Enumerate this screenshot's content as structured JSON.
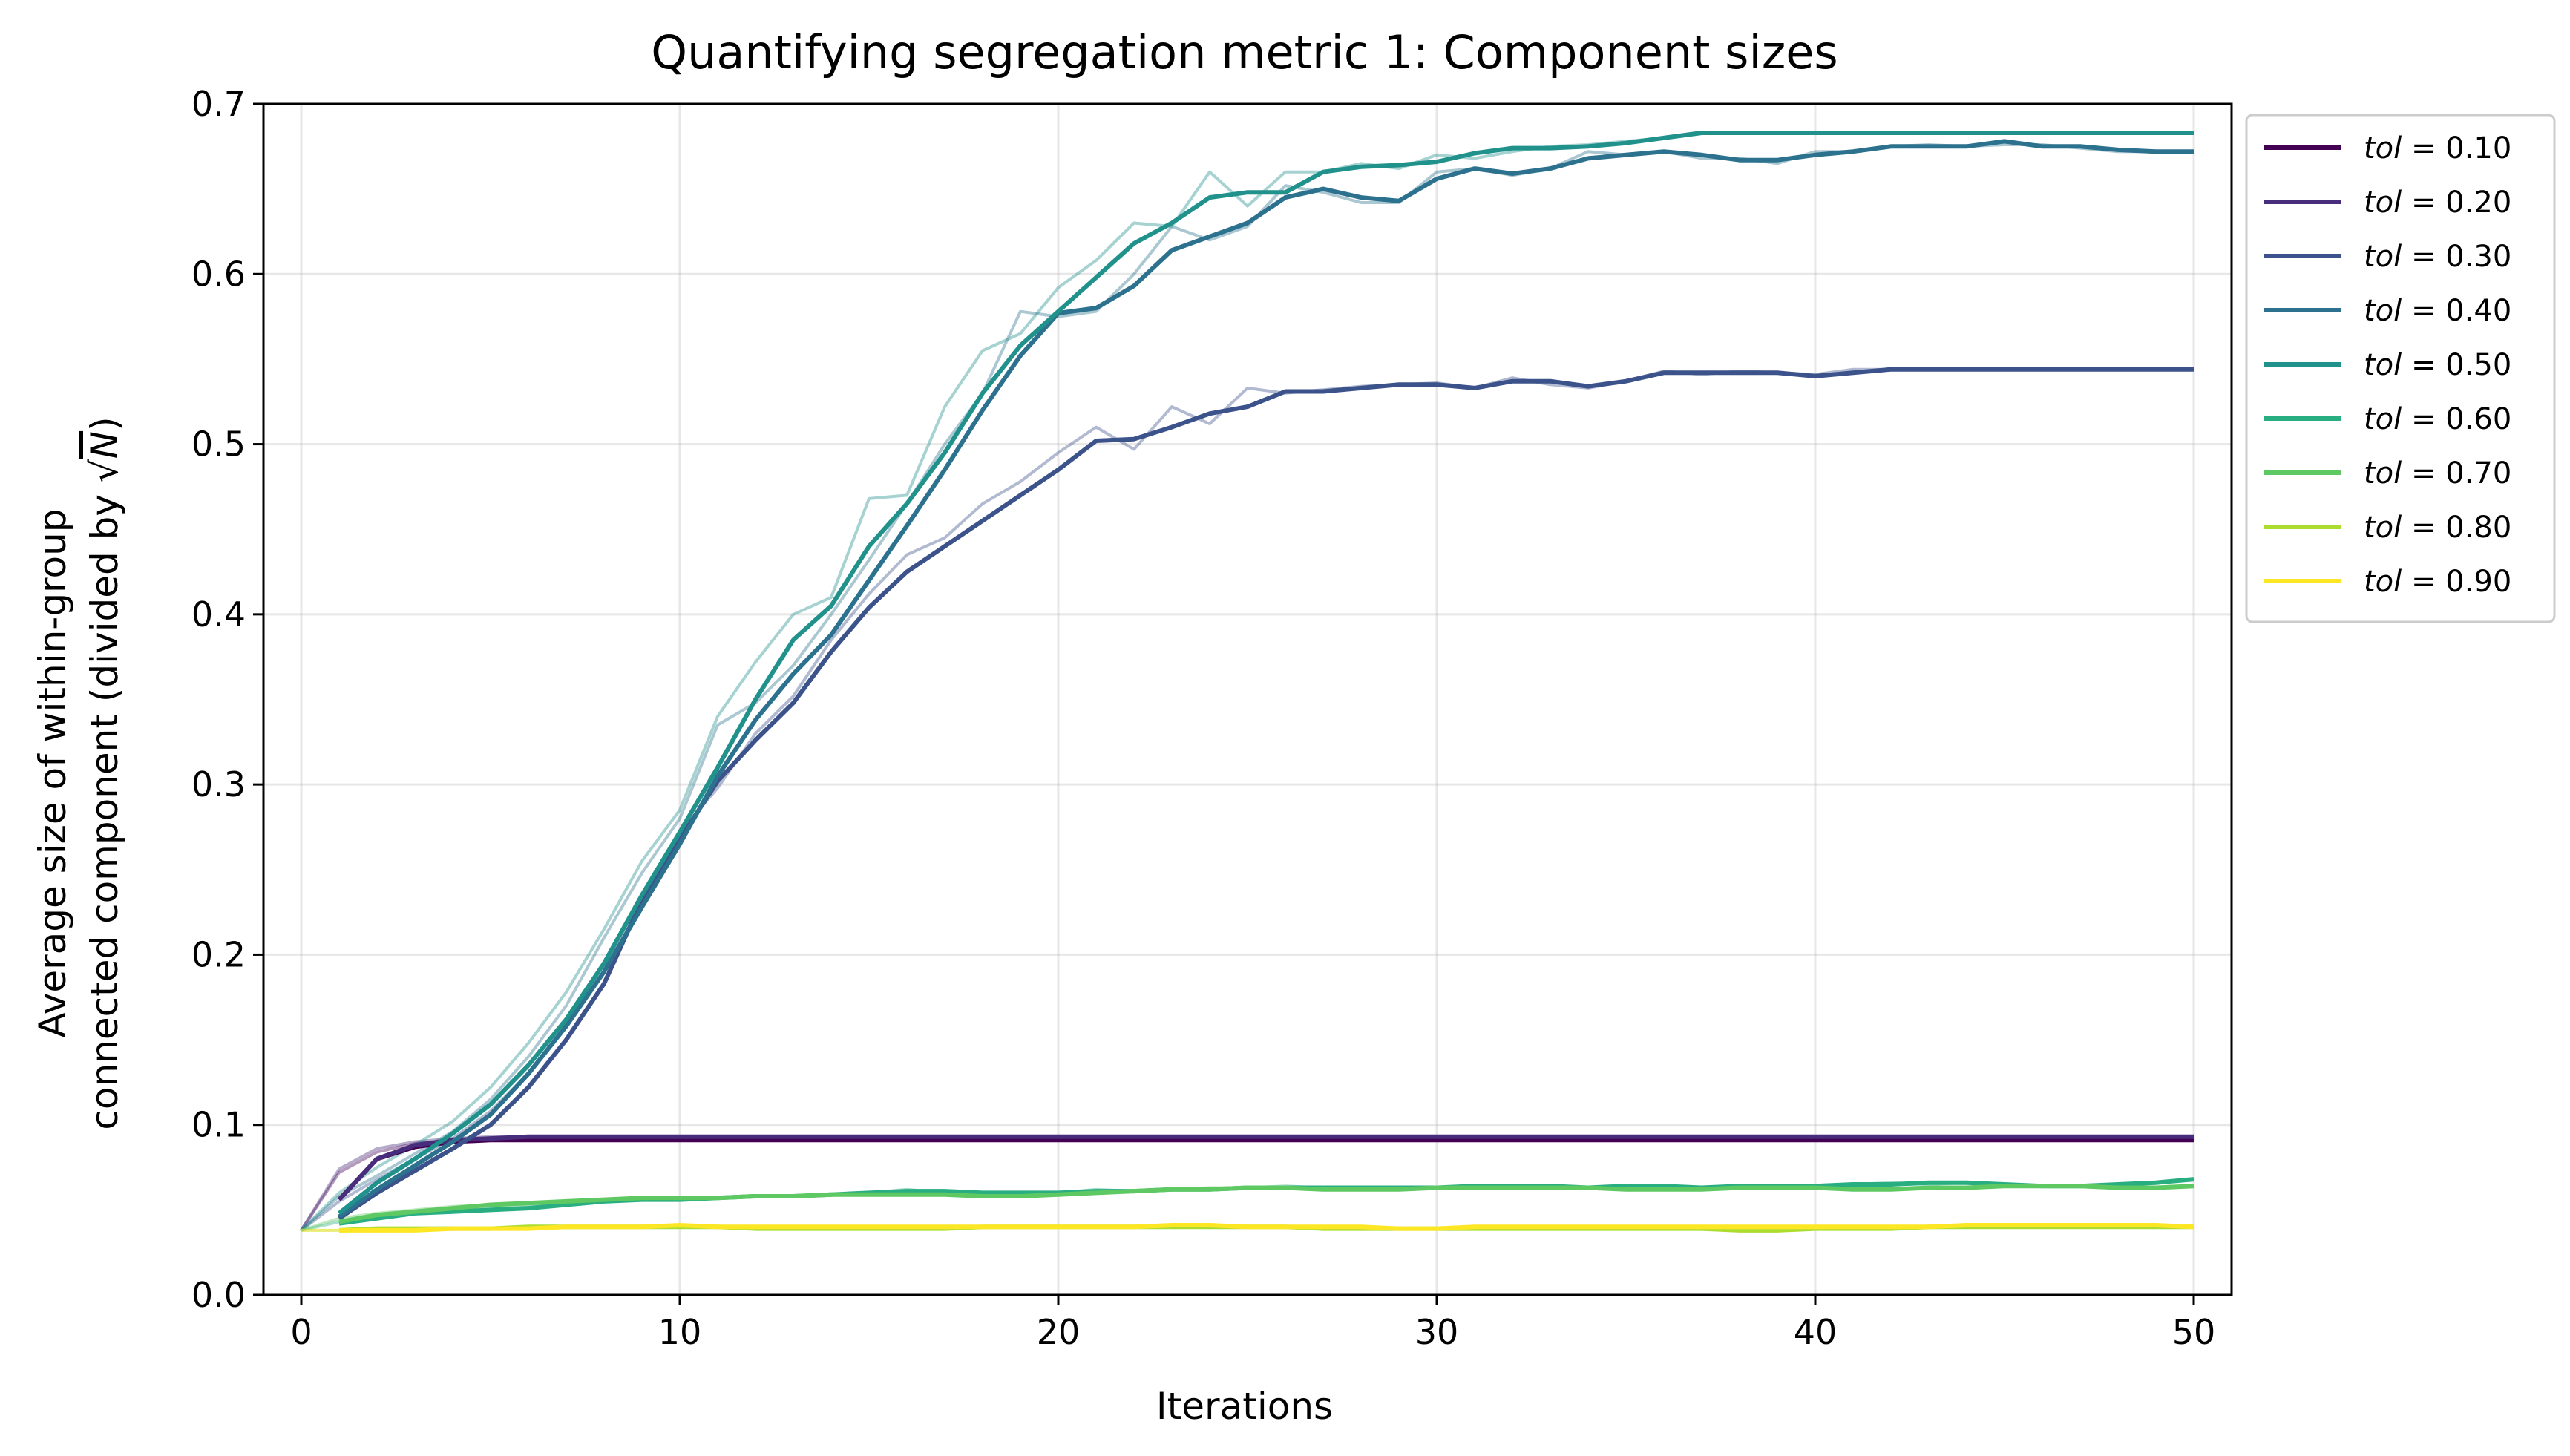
{
  "chart_data": {
    "type": "line",
    "title": "Quantifying segregation metric 1: Component sizes",
    "xlabel": "Iterations",
    "ylabel_line1": "Average size of within-group",
    "ylabel_line2_prefix": "connected component (divided by ",
    "ylabel_sqrt_symbol": "√",
    "ylabel_sqrt_var": "N",
    "ylabel_line2_suffix": ")",
    "xlim": [
      -1,
      51
    ],
    "ylim": [
      0.0,
      0.7
    ],
    "xticks": [
      0,
      10,
      20,
      30,
      40,
      50
    ],
    "xtick_labels": [
      "0",
      "10",
      "20",
      "30",
      "40",
      "50"
    ],
    "yticks": [
      0.0,
      0.1,
      0.2,
      0.3,
      0.4,
      0.5,
      0.6,
      0.7
    ],
    "ytick_labels": [
      "0.0",
      "0.1",
      "0.2",
      "0.3",
      "0.4",
      "0.5",
      "0.6",
      "0.7"
    ],
    "grid": true,
    "legend_position": "outside upper right",
    "legend_var": "tol",
    "legend_eq": " = ",
    "series": [
      {
        "name": "tol = 0.10",
        "value_label": "0.10",
        "color": "#440154",
        "raw": [
          0.038,
          0.072,
          0.084,
          0.089,
          0.091,
          0.091,
          0.091,
          0.091,
          0.091,
          0.091,
          0.091,
          0.091,
          0.091,
          0.091,
          0.091,
          0.091,
          0.091,
          0.091,
          0.091,
          0.091,
          0.091,
          0.091,
          0.091,
          0.091,
          0.091,
          0.091,
          0.091,
          0.091,
          0.091,
          0.091,
          0.091,
          0.091,
          0.091,
          0.091,
          0.091,
          0.091,
          0.091,
          0.091,
          0.091,
          0.091,
          0.091,
          0.091,
          0.091,
          0.091,
          0.091,
          0.091,
          0.091,
          0.091,
          0.091,
          0.091,
          0.091
        ],
        "smooth_start": 1,
        "smooth": [
          0.056,
          0.08,
          0.087,
          0.09,
          0.091,
          0.091,
          0.091,
          0.091,
          0.091,
          0.091,
          0.091,
          0.091,
          0.091,
          0.091,
          0.091,
          0.091,
          0.091,
          0.091,
          0.091,
          0.091,
          0.091,
          0.091,
          0.091,
          0.091,
          0.091,
          0.091,
          0.091,
          0.091,
          0.091,
          0.091,
          0.091,
          0.091,
          0.091,
          0.091,
          0.091,
          0.091,
          0.091,
          0.091,
          0.091,
          0.091,
          0.091,
          0.091,
          0.091,
          0.091,
          0.091,
          0.091,
          0.091,
          0.091,
          0.091,
          0.091
        ]
      },
      {
        "name": "tol = 0.20",
        "value_label": "0.20",
        "color": "#472d7b",
        "raw": [
          0.038,
          0.074,
          0.086,
          0.09,
          0.092,
          0.093,
          0.093,
          0.093,
          0.093,
          0.093,
          0.093,
          0.093,
          0.093,
          0.093,
          0.093,
          0.093,
          0.093,
          0.093,
          0.093,
          0.093,
          0.093,
          0.093,
          0.093,
          0.093,
          0.093,
          0.093,
          0.093,
          0.093,
          0.093,
          0.093,
          0.093,
          0.093,
          0.093,
          0.093,
          0.093,
          0.093,
          0.093,
          0.093,
          0.093,
          0.093,
          0.093,
          0.093,
          0.093,
          0.093,
          0.093,
          0.093,
          0.093,
          0.093,
          0.093,
          0.093,
          0.093
        ],
        "smooth_start": 1,
        "smooth": [
          0.056,
          0.08,
          0.088,
          0.091,
          0.092,
          0.093,
          0.093,
          0.093,
          0.093,
          0.093,
          0.093,
          0.093,
          0.093,
          0.093,
          0.093,
          0.093,
          0.093,
          0.093,
          0.093,
          0.093,
          0.093,
          0.093,
          0.093,
          0.093,
          0.093,
          0.093,
          0.093,
          0.093,
          0.093,
          0.093,
          0.093,
          0.093,
          0.093,
          0.093,
          0.093,
          0.093,
          0.093,
          0.093,
          0.093,
          0.093,
          0.093,
          0.093,
          0.093,
          0.093,
          0.093,
          0.093,
          0.093,
          0.093,
          0.093,
          0.093
        ]
      },
      {
        "name": "tol = 0.30",
        "value_label": "0.30",
        "color": "#3b528b",
        "raw": [
          0.038,
          0.055,
          0.068,
          0.08,
          0.092,
          0.108,
          0.13,
          0.158,
          0.19,
          0.232,
          0.272,
          0.298,
          0.33,
          0.352,
          0.385,
          0.412,
          0.435,
          0.445,
          0.465,
          0.478,
          0.495,
          0.51,
          0.497,
          0.522,
          0.512,
          0.533,
          0.53,
          0.532,
          0.534,
          0.535,
          0.536,
          0.533,
          0.539,
          0.535,
          0.533,
          0.537,
          0.543,
          0.541,
          0.543,
          0.542,
          0.541,
          0.544,
          0.544,
          0.544,
          0.544,
          0.544,
          0.544,
          0.544,
          0.544,
          0.544,
          0.544
        ],
        "smooth_start": 1,
        "smooth": [
          0.045,
          0.06,
          0.073,
          0.086,
          0.1,
          0.122,
          0.15,
          0.183,
          0.232,
          0.268,
          0.302,
          0.326,
          0.348,
          0.378,
          0.404,
          0.425,
          0.44,
          0.455,
          0.47,
          0.485,
          0.502,
          0.503,
          0.51,
          0.518,
          0.522,
          0.531,
          0.531,
          0.533,
          0.535,
          0.535,
          0.533,
          0.537,
          0.537,
          0.534,
          0.537,
          0.542,
          0.542,
          0.542,
          0.542,
          0.54,
          0.542,
          0.544,
          0.544,
          0.544,
          0.544,
          0.544,
          0.544,
          0.544,
          0.544,
          0.544
        ]
      },
      {
        "name": "tol = 0.40",
        "value_label": "0.40",
        "color": "#2c728e",
        "raw": [
          0.038,
          0.058,
          0.07,
          0.083,
          0.096,
          0.115,
          0.14,
          0.17,
          0.21,
          0.248,
          0.28,
          0.335,
          0.348,
          0.37,
          0.4,
          0.432,
          0.465,
          0.5,
          0.53,
          0.578,
          0.575,
          0.578,
          0.6,
          0.628,
          0.62,
          0.628,
          0.652,
          0.648,
          0.642,
          0.642,
          0.66,
          0.662,
          0.658,
          0.662,
          0.672,
          0.67,
          0.672,
          0.668,
          0.668,
          0.665,
          0.672,
          0.672,
          0.675,
          0.676,
          0.675,
          0.676,
          0.676,
          0.674,
          0.672,
          0.672,
          0.672
        ],
        "smooth_start": 1,
        "smooth": [
          0.046,
          0.062,
          0.076,
          0.09,
          0.106,
          0.13,
          0.158,
          0.19,
          0.228,
          0.265,
          0.305,
          0.338,
          0.365,
          0.388,
          0.42,
          0.452,
          0.485,
          0.52,
          0.552,
          0.577,
          0.58,
          0.593,
          0.614,
          0.622,
          0.63,
          0.645,
          0.65,
          0.645,
          0.643,
          0.656,
          0.662,
          0.659,
          0.662,
          0.668,
          0.67,
          0.672,
          0.67,
          0.667,
          0.667,
          0.67,
          0.672,
          0.675,
          0.675,
          0.675,
          0.678,
          0.675,
          0.675,
          0.673,
          0.672,
          0.672
        ]
      },
      {
        "name": "tol = 0.50",
        "value_label": "0.50",
        "color": "#21918c",
        "raw": [
          0.038,
          0.06,
          0.075,
          0.088,
          0.102,
          0.122,
          0.148,
          0.178,
          0.215,
          0.255,
          0.285,
          0.34,
          0.372,
          0.4,
          0.41,
          0.468,
          0.47,
          0.522,
          0.555,
          0.565,
          0.592,
          0.608,
          0.63,
          0.628,
          0.66,
          0.64,
          0.66,
          0.66,
          0.665,
          0.662,
          0.67,
          0.668,
          0.672,
          0.675,
          0.676,
          0.678,
          0.68,
          0.683,
          0.683,
          0.683,
          0.683,
          0.683,
          0.683,
          0.683,
          0.683,
          0.683,
          0.683,
          0.683,
          0.683,
          0.683,
          0.683
        ],
        "smooth_start": 1,
        "smooth": [
          0.048,
          0.066,
          0.08,
          0.095,
          0.112,
          0.135,
          0.162,
          0.195,
          0.235,
          0.272,
          0.31,
          0.35,
          0.385,
          0.405,
          0.44,
          0.465,
          0.495,
          0.53,
          0.558,
          0.578,
          0.598,
          0.618,
          0.63,
          0.645,
          0.648,
          0.648,
          0.66,
          0.663,
          0.664,
          0.666,
          0.671,
          0.674,
          0.674,
          0.675,
          0.677,
          0.68,
          0.683,
          0.683,
          0.683,
          0.683,
          0.683,
          0.683,
          0.683,
          0.683,
          0.683,
          0.683,
          0.683,
          0.683,
          0.683,
          0.683
        ]
      },
      {
        "name": "tol = 0.60",
        "value_label": "0.60",
        "color": "#28ae80",
        "raw": [
          0.038,
          0.043,
          0.047,
          0.049,
          0.05,
          0.051,
          0.052,
          0.054,
          0.056,
          0.056,
          0.056,
          0.057,
          0.058,
          0.058,
          0.059,
          0.06,
          0.062,
          0.06,
          0.06,
          0.059,
          0.06,
          0.062,
          0.061,
          0.062,
          0.062,
          0.063,
          0.064,
          0.063,
          0.063,
          0.063,
          0.063,
          0.064,
          0.064,
          0.064,
          0.063,
          0.064,
          0.064,
          0.063,
          0.064,
          0.064,
          0.064,
          0.065,
          0.066,
          0.065,
          0.066,
          0.065,
          0.064,
          0.064,
          0.065,
          0.066,
          0.068
        ],
        "smooth_start": 1,
        "smooth": [
          0.042,
          0.045,
          0.048,
          0.049,
          0.05,
          0.051,
          0.053,
          0.055,
          0.056,
          0.056,
          0.057,
          0.058,
          0.058,
          0.059,
          0.06,
          0.061,
          0.061,
          0.06,
          0.06,
          0.06,
          0.061,
          0.061,
          0.062,
          0.062,
          0.063,
          0.063,
          0.063,
          0.063,
          0.063,
          0.063,
          0.064,
          0.064,
          0.064,
          0.063,
          0.064,
          0.064,
          0.063,
          0.064,
          0.064,
          0.064,
          0.065,
          0.065,
          0.066,
          0.066,
          0.065,
          0.064,
          0.064,
          0.065,
          0.066,
          0.068
        ]
      },
      {
        "name": "tol = 0.70",
        "value_label": "0.70",
        "color": "#5ec962",
        "raw": [
          0.038,
          0.045,
          0.048,
          0.05,
          0.052,
          0.053,
          0.054,
          0.055,
          0.056,
          0.057,
          0.057,
          0.057,
          0.058,
          0.058,
          0.059,
          0.059,
          0.059,
          0.059,
          0.058,
          0.058,
          0.059,
          0.06,
          0.061,
          0.062,
          0.063,
          0.063,
          0.063,
          0.062,
          0.062,
          0.062,
          0.063,
          0.063,
          0.063,
          0.063,
          0.063,
          0.062,
          0.062,
          0.062,
          0.063,
          0.063,
          0.063,
          0.062,
          0.062,
          0.063,
          0.063,
          0.064,
          0.064,
          0.064,
          0.063,
          0.063,
          0.064
        ],
        "smooth_start": 1,
        "smooth": [
          0.043,
          0.047,
          0.049,
          0.051,
          0.053,
          0.054,
          0.055,
          0.056,
          0.057,
          0.057,
          0.057,
          0.058,
          0.058,
          0.059,
          0.059,
          0.059,
          0.059,
          0.058,
          0.058,
          0.059,
          0.06,
          0.061,
          0.062,
          0.062,
          0.063,
          0.063,
          0.062,
          0.062,
          0.062,
          0.063,
          0.063,
          0.063,
          0.063,
          0.063,
          0.062,
          0.062,
          0.062,
          0.063,
          0.063,
          0.063,
          0.062,
          0.062,
          0.063,
          0.063,
          0.064,
          0.064,
          0.064,
          0.063,
          0.063,
          0.064
        ]
      },
      {
        "name": "tol = 0.80",
        "value_label": "0.80",
        "color": "#addc30",
        "raw": [
          0.038,
          0.038,
          0.039,
          0.039,
          0.039,
          0.039,
          0.04,
          0.04,
          0.04,
          0.04,
          0.04,
          0.04,
          0.039,
          0.039,
          0.039,
          0.039,
          0.039,
          0.039,
          0.04,
          0.04,
          0.04,
          0.04,
          0.04,
          0.04,
          0.04,
          0.04,
          0.04,
          0.039,
          0.039,
          0.039,
          0.039,
          0.039,
          0.039,
          0.039,
          0.039,
          0.039,
          0.039,
          0.039,
          0.038,
          0.038,
          0.039,
          0.039,
          0.039,
          0.04,
          0.04,
          0.04,
          0.04,
          0.04,
          0.04,
          0.04,
          0.04
        ],
        "smooth_start": 1,
        "smooth": [
          0.038,
          0.039,
          0.039,
          0.039,
          0.039,
          0.04,
          0.04,
          0.04,
          0.04,
          0.04,
          0.04,
          0.039,
          0.039,
          0.039,
          0.039,
          0.039,
          0.039,
          0.04,
          0.04,
          0.04,
          0.04,
          0.04,
          0.04,
          0.04,
          0.04,
          0.04,
          0.039,
          0.039,
          0.039,
          0.039,
          0.039,
          0.039,
          0.039,
          0.039,
          0.039,
          0.039,
          0.039,
          0.038,
          0.038,
          0.039,
          0.039,
          0.039,
          0.04,
          0.04,
          0.04,
          0.04,
          0.04,
          0.04,
          0.04,
          0.04
        ]
      },
      {
        "name": "tol = 0.90",
        "value_label": "0.90",
        "color": "#fde725",
        "raw": [
          0.038,
          0.038,
          0.038,
          0.038,
          0.039,
          0.039,
          0.039,
          0.04,
          0.04,
          0.04,
          0.041,
          0.04,
          0.04,
          0.04,
          0.04,
          0.04,
          0.04,
          0.04,
          0.04,
          0.04,
          0.04,
          0.04,
          0.04,
          0.041,
          0.041,
          0.04,
          0.04,
          0.04,
          0.04,
          0.039,
          0.039,
          0.04,
          0.04,
          0.04,
          0.04,
          0.04,
          0.04,
          0.04,
          0.04,
          0.04,
          0.04,
          0.04,
          0.04,
          0.04,
          0.041,
          0.041,
          0.041,
          0.041,
          0.041,
          0.041,
          0.04
        ],
        "smooth_start": 1,
        "smooth": [
          0.038,
          0.038,
          0.038,
          0.039,
          0.039,
          0.039,
          0.04,
          0.04,
          0.04,
          0.041,
          0.04,
          0.04,
          0.04,
          0.04,
          0.04,
          0.04,
          0.04,
          0.04,
          0.04,
          0.04,
          0.04,
          0.04,
          0.041,
          0.041,
          0.04,
          0.04,
          0.04,
          0.04,
          0.039,
          0.039,
          0.04,
          0.04,
          0.04,
          0.04,
          0.04,
          0.04,
          0.04,
          0.04,
          0.04,
          0.04,
          0.04,
          0.04,
          0.04,
          0.041,
          0.041,
          0.041,
          0.041,
          0.041,
          0.041,
          0.04
        ]
      }
    ]
  }
}
